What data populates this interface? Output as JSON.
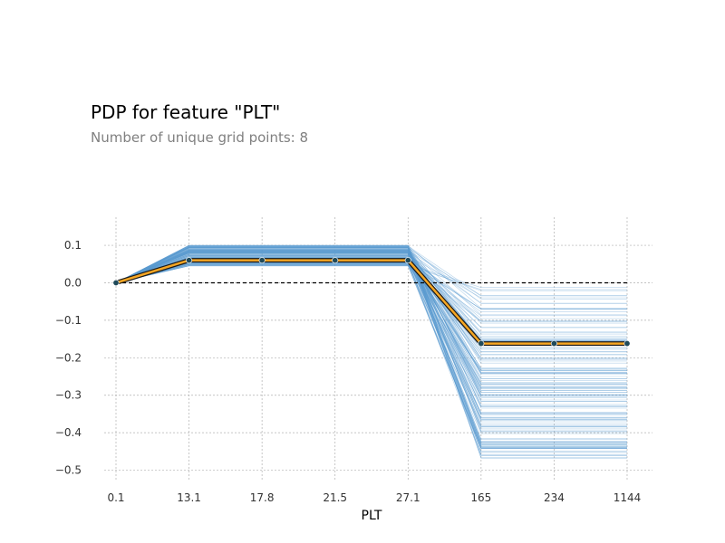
{
  "chart_data": {
    "type": "line",
    "title": "PDP for feature \"PLT\"",
    "subtitle": "Number of unique grid points: 8",
    "xlabel": "PLT",
    "ylabel": "",
    "x_ticks": [
      "0.1",
      "13.1",
      "17.8",
      "21.5",
      "27.1",
      "165",
      "234",
      "1144"
    ],
    "y_ticks": [
      0.1,
      0.0,
      -0.1,
      -0.2,
      -0.3,
      -0.4,
      -0.5
    ],
    "y_tick_labels": [
      "0.1",
      "0.0",
      "−0.1",
      "−0.2",
      "−0.3",
      "−0.4",
      "−0.5"
    ],
    "ylim": [
      -0.53,
      0.175
    ],
    "grid": true,
    "series": [
      {
        "values": [
          0.0,
          0.06,
          0.06,
          0.06,
          0.06,
          -0.162,
          -0.162,
          -0.162
        ]
      }
    ],
    "ice_band": {
      "low": [
        0.0,
        0.045,
        0.045,
        0.045,
        0.045,
        -0.47,
        -0.47,
        -0.47
      ],
      "high": [
        0.0,
        0.1,
        0.1,
        0.1,
        0.1,
        -0.01,
        -0.01,
        -0.01
      ]
    },
    "baseline": 0.0,
    "colors": {
      "pdp_line": "#f5a623",
      "pdp_outline": "#1a1a1a",
      "pdp_markers": "#1f4a5a",
      "ice_lines": "#5b9bd1",
      "grid": "#b0b0b0",
      "baseline": "#000000"
    }
  }
}
